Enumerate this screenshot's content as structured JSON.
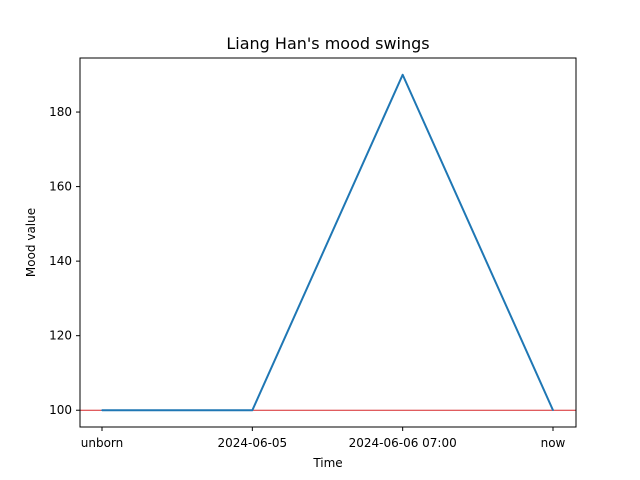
{
  "chart_data": {
    "type": "line",
    "title": "Liang Han's mood swings",
    "xlabel": "Time",
    "ylabel": "Mood value",
    "categories": [
      "unborn",
      "2024-06-05",
      "2024-06-06 07:00",
      "now"
    ],
    "series": [
      {
        "values": [
          100,
          100,
          190,
          100
        ],
        "color": "#1f77b4"
      }
    ],
    "reference_line": {
      "y": 100,
      "color": "#d62728"
    },
    "ylim": [
      95.5,
      194.5
    ],
    "yticks": [
      100,
      120,
      140,
      160,
      180
    ],
    "grid": false,
    "legend": "none"
  }
}
